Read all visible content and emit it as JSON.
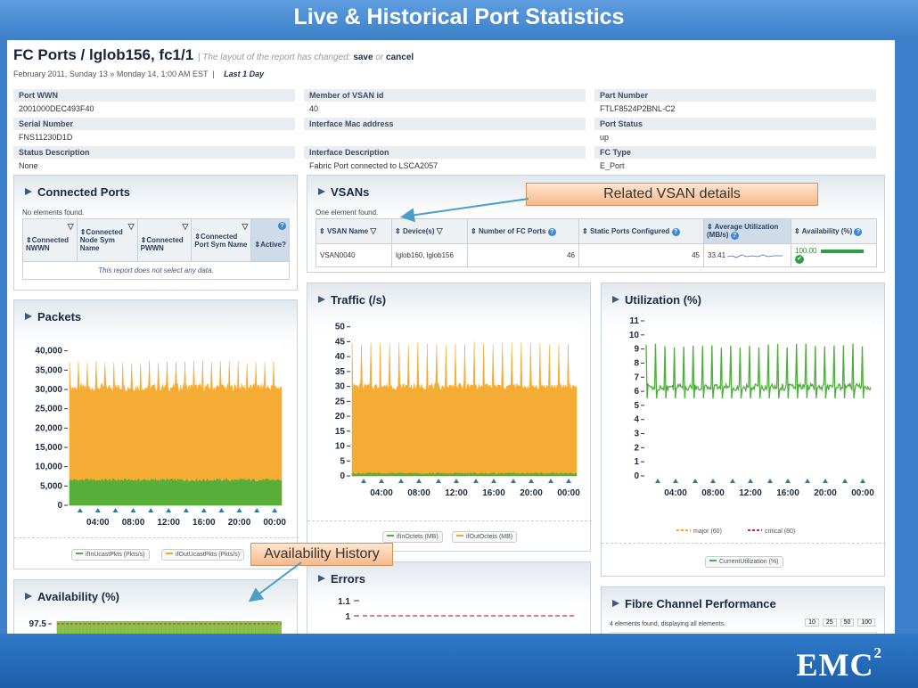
{
  "slide_title": "Live & Historical Port Statistics",
  "header": {
    "title": "FC Ports / lglob156, fc1/1",
    "notice_prefix": "The layout of the report has changed:",
    "save_label": "save",
    "notice_or": "or",
    "cancel_label": "cancel",
    "date_range": "February 2011, Sunday 13 » Monday 14, 1:00 AM EST",
    "period": "Last 1 Day"
  },
  "properties": [
    {
      "label": "Port WWN",
      "value": "2001000DEC493F40"
    },
    {
      "label": "Member of VSAN id",
      "value": "40"
    },
    {
      "label": "Part Number",
      "value": "FTLF8524P2BNL-C2"
    },
    {
      "label": "Serial Number",
      "value": "FNS11230D1D"
    },
    {
      "label": "Interface Mac address",
      "value": ""
    },
    {
      "label": "Port Status",
      "value": "up"
    },
    {
      "label": "Status Description",
      "value": "None"
    },
    {
      "label": "Interface Description",
      "value": "Fabric Port connected to LSCA2057"
    },
    {
      "label": "FC Type",
      "value": "E_Port"
    }
  ],
  "connected_ports": {
    "title": "Connected Ports",
    "status": "No elements found.",
    "columns": [
      "Connected NWWN",
      "Connected Node Sym Name",
      "Connected PWWN",
      "Connected Port Sym Name",
      "Active?"
    ],
    "empty_message": "This report does not select any data."
  },
  "vsans": {
    "title": "VSANs",
    "status": "One element found.",
    "columns": [
      "VSAN Name",
      "Device(s)",
      "Number of FC Ports",
      "Static Ports Configured",
      "Average Utilization (MB/s)",
      "Availability (%)"
    ],
    "rows": [
      {
        "name": "VSAN0040",
        "devices": "lglob160, lglob156",
        "fc_ports": "46",
        "static_ports": "45",
        "avg_util": "33.41",
        "availability": "100.00"
      }
    ]
  },
  "callouts": {
    "vsan": "Related VSAN details",
    "availability": "Availability History"
  },
  "packets": {
    "title": "Packets",
    "legend": [
      "ifInUcastPkts (Pkts/s)",
      "ifOutUcastPkts (Pkts/s)"
    ]
  },
  "traffic": {
    "title": "Traffic (/s)",
    "legend": [
      "ifInOctets (MB)",
      "ifOutOctets (MB)"
    ]
  },
  "utilization": {
    "title": "Utilization (%)",
    "thresholds": [
      "major (60)",
      "critical (80)"
    ],
    "legend": [
      "CurrentUtilization (%)"
    ]
  },
  "availability": {
    "title": "Availability (%)"
  },
  "errors": {
    "title": "Errors"
  },
  "fc_perf": {
    "title": "Fibre Channel Performance",
    "status": "4 elements found, displaying all elements.",
    "page_sizes": [
      "10",
      "25",
      "50",
      "100"
    ]
  },
  "colors": {
    "orange": "#f5a623",
    "green": "#4caf3a",
    "tick": "#2e7d9a",
    "accent": "#3a5a83"
  },
  "chart_data": [
    {
      "type": "area",
      "title": "Packets",
      "x_ticks": [
        "04:00",
        "08:00",
        "12:00",
        "16:00",
        "20:00",
        "00:00"
      ],
      "y_ticks": [
        "0",
        "5,000",
        "10,000",
        "15,000",
        "20,000",
        "25,000",
        "30,000",
        "35,000",
        "40,000"
      ],
      "ylim": [
        0,
        42000
      ],
      "series": [
        {
          "name": "ifInUcastPkts (Pkts/s)",
          "color": "#4caf3a",
          "baseline": 6500,
          "spike": 0,
          "spike_count": 0
        },
        {
          "name": "ifOutUcastPkts (Pkts/s)",
          "color": "#f5a623",
          "baseline": 30500,
          "spike": 7000,
          "spike_count": 24
        }
      ]
    },
    {
      "type": "area",
      "title": "Traffic (/s)",
      "x_ticks": [
        "04:00",
        "08:00",
        "12:00",
        "16:00",
        "20:00",
        "00:00"
      ],
      "y_ticks": [
        "0",
        "5",
        "10",
        "15",
        "20",
        "25",
        "30",
        "35",
        "40",
        "45",
        "50"
      ],
      "ylim": [
        0,
        52
      ],
      "series": [
        {
          "name": "ifInOctets (MB)",
          "color": "#4caf3a",
          "baseline": 0.8,
          "spike": 0,
          "spike_count": 0
        },
        {
          "name": "ifOutOctets (MB)",
          "color": "#f5a623",
          "baseline": 30,
          "spike": 15,
          "spike_count": 24
        }
      ]
    },
    {
      "type": "line",
      "title": "Utilization (%)",
      "x_ticks": [
        "04:00",
        "08:00",
        "12:00",
        "16:00",
        "20:00",
        "00:00"
      ],
      "y_ticks": [
        "0",
        "1",
        "2",
        "3",
        "4",
        "5",
        "6",
        "7",
        "8",
        "9",
        "10",
        "11"
      ],
      "ylim": [
        0,
        11
      ],
      "series": [
        {
          "name": "CurrentUtilization (%)",
          "color": "#4caf3a",
          "baseline": 6.3,
          "spike": 3.1,
          "spike_count": 24
        }
      ]
    },
    {
      "type": "bar",
      "title": "Availability (%)",
      "y_ticks": [
        "97.5"
      ],
      "series": [
        {
          "name": "",
          "color": "#8bc34a",
          "value": 100
        }
      ]
    },
    {
      "type": "line",
      "title": "Errors",
      "y_ticks": [
        "1",
        "1.1"
      ],
      "series": [
        {
          "name": "",
          "color": "#d32f2f",
          "value": 1
        }
      ]
    }
  ]
}
